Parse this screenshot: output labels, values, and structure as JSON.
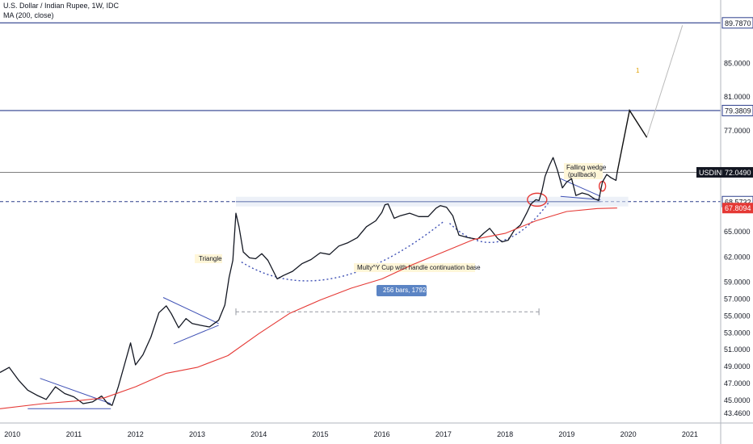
{
  "header": {
    "symbol_line": "U.S. Dollar / Indian Rupee, 1W, IDC",
    "indicator_line": "MA (200, close)"
  },
  "colors": {
    "price": "#131722",
    "ma": "#e53935",
    "trend": "#3f51b5",
    "level": "#2c3e8c",
    "price_tag": "#131722",
    "ma_tag": "#e53935"
  },
  "chart_data": {
    "type": "line",
    "symbol": "USDINR",
    "grid": false,
    "ylim": [
      42.3,
      92.5
    ],
    "xlim": [
      2009.8,
      2021.5
    ],
    "x_ticks": [
      "2010",
      "2011",
      "2012",
      "2013",
      "2014",
      "2015",
      "2016",
      "2017",
      "2018",
      "2019",
      "2020",
      "2021"
    ],
    "y_ticks": [
      "85.0000",
      "81.0000",
      "77.0000",
      "72.0000",
      "68.5732",
      "65.0000",
      "62.0000",
      "59.0000",
      "57.0000",
      "55.0000",
      "53.0000",
      "51.0000",
      "49.0000",
      "47.0000",
      "45.0000",
      "43.4600"
    ],
    "price_labels": [
      {
        "label": "89.7870",
        "value": 89.787,
        "kind": "level"
      },
      {
        "label": "79.3809",
        "value": 79.3809,
        "kind": "level"
      },
      {
        "label": "USDINR",
        "value": 72.049,
        "kind": "symbol"
      },
      {
        "label": "72.0490",
        "value": 72.049,
        "kind": "price"
      },
      {
        "label": "68.5732",
        "value": 68.5732,
        "kind": "level"
      },
      {
        "label": "67.8094",
        "value": 67.8094,
        "kind": "ma"
      }
    ],
    "series": [
      {
        "role": "price",
        "points": [
          [
            2009.8,
            48.3
          ],
          [
            2009.95,
            48.9
          ],
          [
            2010.1,
            47.4
          ],
          [
            2010.25,
            46.2
          ],
          [
            2010.4,
            45.6
          ],
          [
            2010.55,
            45.1
          ],
          [
            2010.7,
            46.6
          ],
          [
            2010.85,
            45.8
          ],
          [
            2011.0,
            45.4
          ],
          [
            2011.15,
            44.6
          ],
          [
            2011.3,
            44.8
          ],
          [
            2011.45,
            45.5
          ],
          [
            2011.55,
            44.6
          ],
          [
            2011.62,
            44.4
          ],
          [
            2011.72,
            46.6
          ],
          [
            2011.82,
            49.2
          ],
          [
            2011.92,
            51.8
          ],
          [
            2012.0,
            49.2
          ],
          [
            2012.12,
            50.4
          ],
          [
            2012.25,
            52.5
          ],
          [
            2012.38,
            55.4
          ],
          [
            2012.5,
            56.2
          ],
          [
            2012.58,
            55.3
          ],
          [
            2012.7,
            53.6
          ],
          [
            2012.82,
            54.7
          ],
          [
            2012.92,
            54.1
          ],
          [
            2013.05,
            53.9
          ],
          [
            2013.2,
            53.7
          ],
          [
            2013.35,
            54.5
          ],
          [
            2013.45,
            56.3
          ],
          [
            2013.52,
            59.6
          ],
          [
            2013.58,
            61.6
          ],
          [
            2013.63,
            67.2
          ],
          [
            2013.68,
            65.6
          ],
          [
            2013.75,
            62.6
          ],
          [
            2013.85,
            61.9
          ],
          [
            2013.95,
            61.8
          ],
          [
            2014.05,
            62.4
          ],
          [
            2014.15,
            61.6
          ],
          [
            2014.3,
            59.4
          ],
          [
            2014.4,
            59.8
          ],
          [
            2014.55,
            60.3
          ],
          [
            2014.7,
            61.2
          ],
          [
            2014.85,
            61.7
          ],
          [
            2015.0,
            62.5
          ],
          [
            2015.15,
            62.3
          ],
          [
            2015.3,
            63.3
          ],
          [
            2015.45,
            63.7
          ],
          [
            2015.6,
            64.3
          ],
          [
            2015.75,
            65.6
          ],
          [
            2015.9,
            66.3
          ],
          [
            2016.0,
            67.3
          ],
          [
            2016.05,
            68.2
          ],
          [
            2016.1,
            68.3
          ],
          [
            2016.2,
            66.6
          ],
          [
            2016.3,
            66.9
          ],
          [
            2016.45,
            67.2
          ],
          [
            2016.6,
            66.8
          ],
          [
            2016.75,
            66.8
          ],
          [
            2016.88,
            67.8
          ],
          [
            2016.95,
            68.1
          ],
          [
            2017.05,
            67.9
          ],
          [
            2017.15,
            66.9
          ],
          [
            2017.25,
            64.6
          ],
          [
            2017.4,
            64.3
          ],
          [
            2017.55,
            64.1
          ],
          [
            2017.65,
            64.8
          ],
          [
            2017.75,
            65.4
          ],
          [
            2017.88,
            64.2
          ],
          [
            2017.95,
            63.8
          ],
          [
            2018.05,
            64.0
          ],
          [
            2018.15,
            65.2
          ],
          [
            2018.25,
            65.8
          ],
          [
            2018.35,
            67.2
          ],
          [
            2018.42,
            68.3
          ],
          [
            2018.5,
            68.8
          ],
          [
            2018.55,
            68.7
          ],
          [
            2018.6,
            69.9
          ],
          [
            2018.65,
            71.6
          ],
          [
            2018.72,
            72.9
          ],
          [
            2018.78,
            73.8
          ],
          [
            2018.85,
            72.3
          ],
          [
            2018.93,
            70.2
          ],
          [
            2019.0,
            70.9
          ],
          [
            2019.08,
            71.3
          ],
          [
            2019.15,
            69.3
          ],
          [
            2019.25,
            69.6
          ],
          [
            2019.35,
            69.4
          ],
          [
            2019.45,
            68.9
          ],
          [
            2019.52,
            68.7
          ],
          [
            2019.58,
            70.9
          ],
          [
            2019.65,
            71.8
          ],
          [
            2019.72,
            71.4
          ],
          [
            2019.8,
            71.1
          ],
          [
            2019.82,
            72.05
          ]
        ]
      },
      {
        "role": "ma",
        "points": [
          [
            2009.8,
            44.0
          ],
          [
            2010.5,
            44.6
          ],
          [
            2011.0,
            44.9
          ],
          [
            2011.5,
            45.3
          ],
          [
            2012.0,
            46.6
          ],
          [
            2012.5,
            48.2
          ],
          [
            2013.0,
            48.9
          ],
          [
            2013.5,
            50.3
          ],
          [
            2014.0,
            52.9
          ],
          [
            2014.5,
            55.3
          ],
          [
            2015.0,
            56.9
          ],
          [
            2015.5,
            58.3
          ],
          [
            2016.0,
            59.4
          ],
          [
            2016.5,
            61.1
          ],
          [
            2017.0,
            62.6
          ],
          [
            2017.5,
            64.1
          ],
          [
            2018.0,
            64.8
          ],
          [
            2018.5,
            66.3
          ],
          [
            2019.0,
            67.4
          ],
          [
            2019.5,
            67.75
          ],
          [
            2019.82,
            67.81
          ]
        ]
      }
    ],
    "annotations": [
      {
        "text": "Triangle"
      },
      {
        "text": "Multy^Y Cup with handle continuation base"
      },
      {
        "text": "256 bars, 1792d"
      },
      {
        "text": "Falling wedge"
      },
      {
        "text": "(pullback)"
      },
      {
        "text": "1"
      }
    ]
  }
}
